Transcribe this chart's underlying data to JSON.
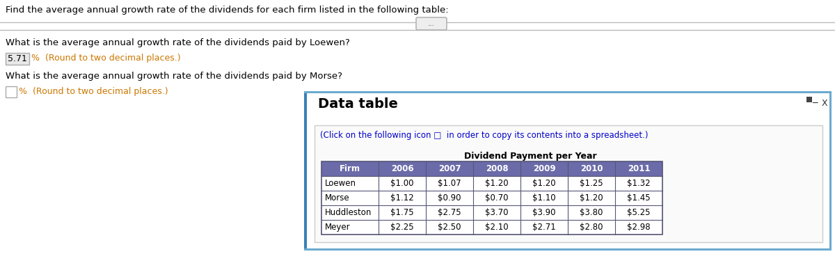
{
  "title_text": "Find the average annual growth rate of the dividends for each firm listed in the following table:",
  "question1": "What is the average annual growth rate of the dividends paid by Loewen?",
  "answer1": "5.71",
  "answer1_suffix": "%  (Round to two decimal places.)",
  "question2": "What is the average annual growth rate of the dividends paid by Morse?",
  "answer2_suffix": "%  (Round to two decimal places.)",
  "dialog_title": "Data table",
  "dialog_subtitle": "(Click on the following icon □  in order to copy its contents into a spreadsheet.)",
  "table_header_label": "Dividend Payment per Year",
  "columns": [
    "Firm",
    "2006",
    "2007",
    "2008",
    "2009",
    "2010",
    "2011"
  ],
  "rows": [
    [
      "Loewen",
      "$1.00",
      "$1.07",
      "$1.20",
      "$1.20",
      "$1.25",
      "$1.32"
    ],
    [
      "Morse",
      "$1.12",
      "$0.90",
      "$0.70",
      "$1.10",
      "$1.20",
      "$1.45"
    ],
    [
      "Huddleston",
      "$1.75",
      "$2.75",
      "$3.70",
      "$3.90",
      "$3.80",
      "$5.25"
    ],
    [
      "Meyer",
      "$2.25",
      "$2.50",
      "$2.10",
      "$2.71",
      "$2.80",
      "$2.98"
    ]
  ],
  "header_bg": "#6B6BAA",
  "header_fg": "#FFFFFF",
  "row_bg_even": "#FFFFFF",
  "row_bg_odd": "#FFFFFF",
  "row_fg": "#000000",
  "border_color": "#555577",
  "dialog_bg": "#FFFFFF",
  "dialog_border_left": "#3A7AAA",
  "dialog_border_other": "#7AAABB",
  "outer_bg": "#FFFFFF",
  "left_text_color": "#000000",
  "answer_box_bg": "#E8E8E8",
  "answer_box_border": "#AAAAAA",
  "answer_text_color": "#000000",
  "subtitle_color": "#0000CC",
  "orange_text": "#CC7700",
  "title_color": "#000000",
  "sep_line_color": "#BBBBBB",
  "ellipsis_border": "#AAAAAA",
  "ellipsis_bg": "#EEEEEE"
}
